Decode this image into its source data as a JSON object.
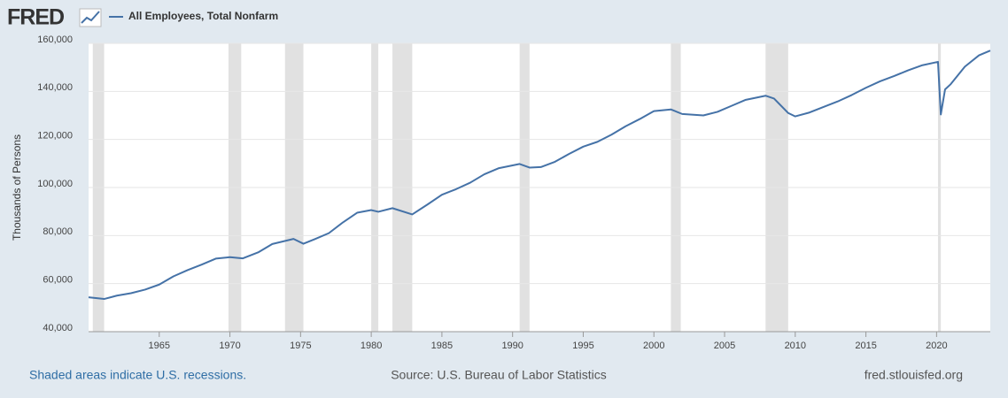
{
  "chart_data": {
    "type": "line",
    "logo": "FRED",
    "ylabel": "Thousands of Persons",
    "recession_note": "Shaded areas indicate U.S. recessions.",
    "source": "Source: U.S. Bureau of Labor Statistics",
    "site": "fred.stlouisfed.org",
    "x": [
      1960,
      1961.1,
      1962,
      1963,
      1964,
      1965,
      1966,
      1967,
      1968,
      1969,
      1970,
      1970.9,
      1972,
      1973,
      1974.5,
      1975.2,
      1976,
      1977,
      1978,
      1979,
      1980,
      1980.5,
      1981.5,
      1982.9,
      1984,
      1985,
      1986,
      1987,
      1988,
      1989,
      1990.5,
      1991.2,
      1992,
      1993,
      1994,
      1995,
      1996,
      1997,
      1998,
      1999,
      2000,
      2001.2,
      2002,
      2003.5,
      2004.5,
      2005.5,
      2006.5,
      2007.9,
      2008.5,
      2009.5,
      2010,
      2011,
      2012,
      2013,
      2014,
      2015,
      2016,
      2017,
      2018,
      2019,
      2020.1,
      2020.3,
      2020.6,
      2021,
      2022,
      2023,
      2023.8
    ],
    "series": [
      {
        "name": "All Employees, Total Nonfarm",
        "color": "#4572a7",
        "values": [
          54300,
          53600,
          55000,
          56000,
          57500,
          59600,
          63000,
          65600,
          67900,
          70400,
          71000,
          70500,
          73000,
          76500,
          78600,
          76600,
          78500,
          81000,
          85500,
          89500,
          90600,
          89900,
          91400,
          88800,
          93000,
          97000,
          99300,
          102000,
          105500,
          108000,
          109800,
          108300,
          108500,
          110700,
          114000,
          117000,
          119000,
          122000,
          125500,
          128500,
          131800,
          132500,
          130600,
          130000,
          131500,
          134000,
          136500,
          138200,
          137000,
          131000,
          129600,
          131200,
          133500,
          135800,
          138500,
          141500,
          144200,
          146400,
          148800,
          150900,
          152300,
          130400,
          140800,
          143000,
          150300,
          155000,
          157000
        ]
      }
    ],
    "recessions": [
      [
        1960.3,
        1961.1
      ],
      [
        1969.9,
        1970.8
      ],
      [
        1973.9,
        1975.2
      ],
      [
        1980.0,
        1980.5
      ],
      [
        1981.5,
        1982.9
      ],
      [
        1990.5,
        1991.2
      ],
      [
        2001.2,
        2001.9
      ],
      [
        2007.9,
        2009.5
      ],
      [
        2020.1,
        2020.3
      ]
    ],
    "xlim": [
      1960,
      2023.8
    ],
    "xticks": [
      1965,
      1970,
      1975,
      1980,
      1985,
      1990,
      1995,
      2000,
      2005,
      2010,
      2015,
      2020
    ],
    "ylim": [
      40000,
      160000
    ],
    "yticks": [
      {
        "value": 40000,
        "label": "40,000"
      },
      {
        "value": 60000,
        "label": "60,000"
      },
      {
        "value": 80000,
        "label": "80,000"
      },
      {
        "value": 100000,
        "label": "100,000"
      },
      {
        "value": 120000,
        "label": "120,000"
      },
      {
        "value": 140000,
        "label": "140,000"
      },
      {
        "value": 160000,
        "label": "160,000"
      }
    ],
    "grid": true
  }
}
